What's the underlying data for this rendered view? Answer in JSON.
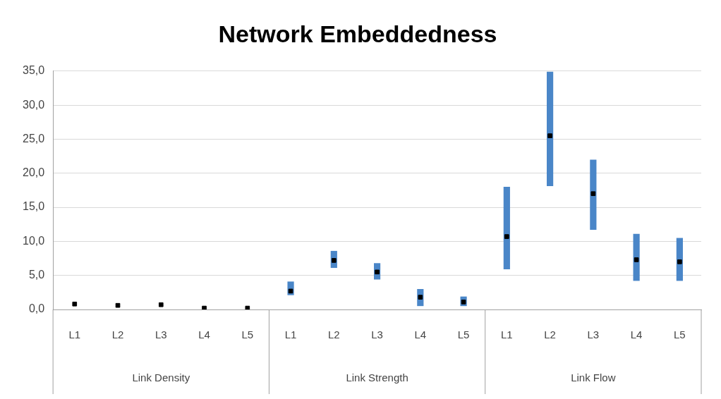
{
  "chart_data": {
    "type": "bar",
    "title": "Network Embeddedness",
    "categories": [
      "L1",
      "L2",
      "L3",
      "L4",
      "L5",
      "L1",
      "L2",
      "L3",
      "L4",
      "L5",
      "L1",
      "L2",
      "L3",
      "L4",
      "L5"
    ],
    "annotations": [
      "Link Density",
      "Link Strength",
      "Link Flow"
    ],
    "series": [
      {
        "color": "#4a86c8",
        "base": [
          null,
          null,
          null,
          null,
          null,
          2.1,
          6.1,
          4.4,
          0.5,
          0.5,
          5.9,
          18.1,
          11.7,
          4.2,
          4.2
        ],
        "values": [
          null,
          null,
          null,
          null,
          null,
          2.0,
          2.5,
          2.4,
          2.5,
          1.4,
          12.1,
          16.8,
          10.3,
          6.9,
          6.3
        ]
      },
      {
        "type": "scatter",
        "color": "#000000",
        "marker": "square",
        "values": [
          0.8,
          0.6,
          0.7,
          0.2,
          0.2,
          2.7,
          7.2,
          5.5,
          1.8,
          1.1,
          10.7,
          25.5,
          17.0,
          7.3,
          7.0
        ]
      }
    ],
    "ylim": [
      0,
      35
    ],
    "yticks": [
      {
        "value": 0,
        "label": "0,0"
      },
      {
        "value": 5,
        "label": "5,0"
      },
      {
        "value": 10,
        "label": "10,0"
      },
      {
        "value": 15,
        "label": "15,0"
      },
      {
        "value": 20,
        "label": "20,0"
      },
      {
        "value": 25,
        "label": "25,0"
      },
      {
        "value": 30,
        "label": "30,0"
      },
      {
        "value": 35,
        "label": "35,0"
      }
    ],
    "grid": "y",
    "legend": false
  }
}
